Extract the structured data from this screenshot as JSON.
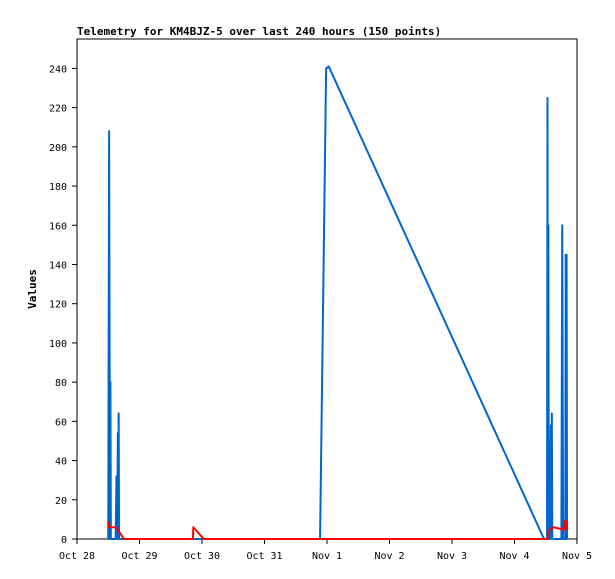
{
  "chart_data": {
    "type": "line",
    "title": "Telemetry for KM4BJZ-5 over last 240 hours (150 points)",
    "xlabel": "",
    "ylabel": "Values",
    "x_ticks": [
      "Oct 28",
      "Oct 29",
      "Oct 30",
      "Oct 31",
      "Nov 1",
      "Nov 2",
      "Nov 3",
      "Nov 4",
      "Nov 5"
    ],
    "xlim": [
      "2023-10-28T00:00",
      "2023-11-05T00:00"
    ],
    "y_ticks": [
      0,
      20,
      40,
      60,
      80,
      100,
      120,
      140,
      160,
      180,
      200,
      220,
      240
    ],
    "ylim": [
      0,
      255
    ],
    "grid": false,
    "legend": "none",
    "series": [
      {
        "color": "#0066cc",
        "points": [
          [
            "2023-10-28T12:00",
            0
          ],
          [
            "2023-10-28T12:20",
            208
          ],
          [
            "2023-10-28T12:40",
            0
          ],
          [
            "2023-10-28T12:50",
            80
          ],
          [
            "2023-10-28T13:00",
            0
          ],
          [
            "2023-10-28T14:50",
            0
          ],
          [
            "2023-10-28T15:10",
            32
          ],
          [
            "2023-10-28T15:30",
            0
          ],
          [
            "2023-10-28T15:40",
            54
          ],
          [
            "2023-10-28T15:50",
            0
          ],
          [
            "2023-10-28T16:00",
            64
          ],
          [
            "2023-10-28T16:10",
            0
          ],
          [
            "2023-10-31T21:20",
            0
          ],
          [
            "2023-10-31T23:40",
            240
          ],
          [
            "2023-11-01T00:40",
            241
          ],
          [
            "2023-11-04T11:20",
            0
          ],
          [
            "2023-11-04T12:30",
            0
          ],
          [
            "2023-11-04T12:40",
            225
          ],
          [
            "2023-11-04T12:50",
            0
          ],
          [
            "2023-11-04T13:00",
            160
          ],
          [
            "2023-11-04T13:10",
            0
          ],
          [
            "2023-11-04T13:30",
            0
          ],
          [
            "2023-11-04T13:50",
            45
          ],
          [
            "2023-11-04T14:00",
            58
          ],
          [
            "2023-11-04T14:10",
            0
          ],
          [
            "2023-11-04T14:20",
            64
          ],
          [
            "2023-11-04T14:30",
            0
          ],
          [
            "2023-11-04T18:00",
            0
          ],
          [
            "2023-11-04T18:20",
            160
          ],
          [
            "2023-11-04T18:40",
            0
          ],
          [
            "2023-11-04T19:30",
            0
          ],
          [
            "2023-11-04T19:40",
            145
          ],
          [
            "2023-11-04T19:50",
            0
          ],
          [
            "2023-11-04T20:00",
            145
          ],
          [
            "2023-11-04T20:10",
            0
          ]
        ]
      },
      {
        "color": "#ff0000",
        "points": [
          [
            "2023-10-28T12:00",
            9
          ],
          [
            "2023-10-28T12:10",
            6
          ],
          [
            "2023-10-28T15:00",
            6
          ],
          [
            "2023-10-28T18:00",
            0
          ],
          [
            "2023-10-29T20:30",
            0
          ],
          [
            "2023-10-29T20:40",
            6
          ],
          [
            "2023-10-30T00:40",
            0
          ],
          [
            "2023-11-04T12:40",
            0
          ],
          [
            "2023-11-04T13:00",
            4
          ],
          [
            "2023-11-04T15:00",
            6
          ],
          [
            "2023-11-04T18:00",
            5
          ],
          [
            "2023-11-04T19:00",
            6
          ],
          [
            "2023-11-04T19:10",
            9
          ],
          [
            "2023-11-04T19:30",
            4
          ],
          [
            "2023-11-04T19:50",
            9
          ],
          [
            "2023-11-04T20:10",
            5
          ]
        ]
      }
    ]
  }
}
